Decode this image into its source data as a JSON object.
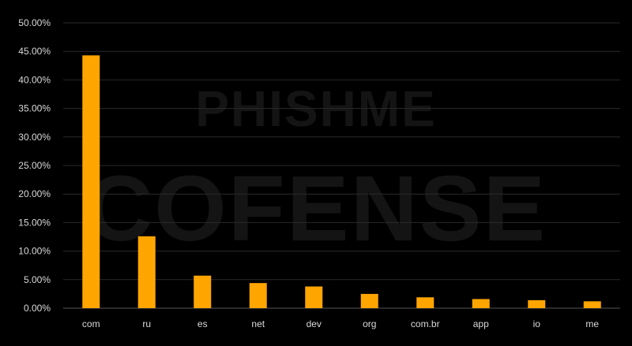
{
  "watermark": {
    "line1": "PHISHME",
    "line2": "COFENSE"
  },
  "chart_data": {
    "type": "bar",
    "categories": [
      "com",
      "ru",
      "es",
      "net",
      "dev",
      "org",
      "com.br",
      "app",
      "io",
      "me"
    ],
    "values": [
      44.3,
      12.6,
      5.7,
      4.4,
      3.8,
      2.5,
      1.9,
      1.6,
      1.4,
      1.2
    ],
    "ylim": [
      0,
      50
    ],
    "yticks": [
      "0.00%",
      "5.00%",
      "10.00%",
      "15.00%",
      "20.00%",
      "25.00%",
      "30.00%",
      "35.00%",
      "40.00%",
      "45.00%",
      "50.00%"
    ],
    "bar_color": "#FFA500",
    "grid_color": "#2a2a2a",
    "text_color": "#d9d9d9",
    "background": "#000000",
    "grid": true,
    "legend": "none"
  }
}
